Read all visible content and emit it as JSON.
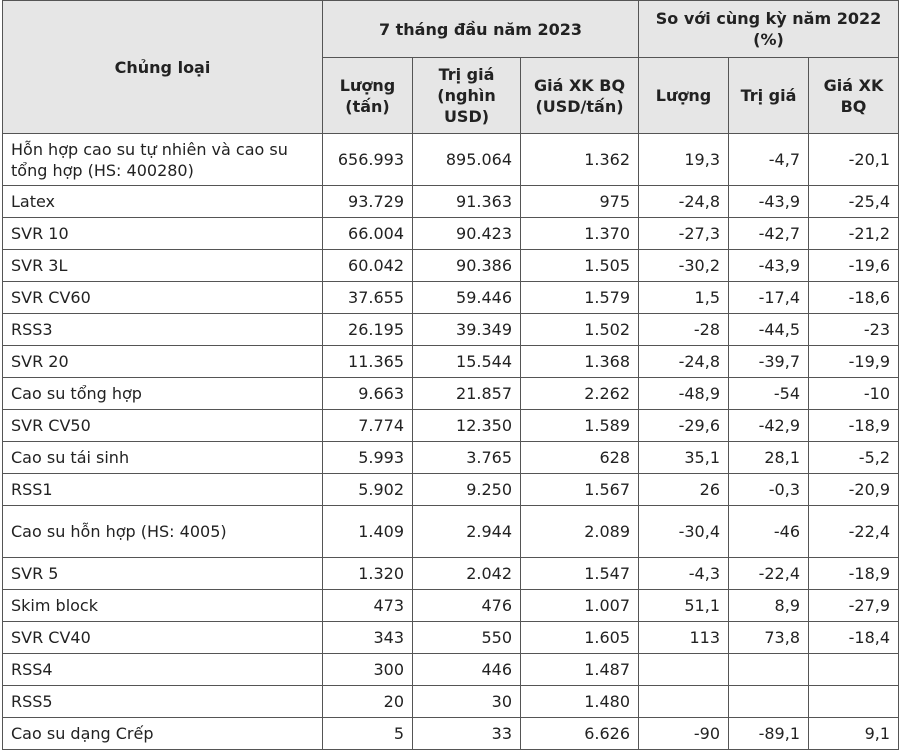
{
  "table": {
    "header": {
      "first": "Chủng loại",
      "group1": "7 tháng đầu năm 2023",
      "group2": "So với cùng kỳ năm 2022 (%)",
      "sub": [
        "Lượng (tấn)",
        "Trị giá (nghìn USD)",
        "Giá XK BQ (USD/tấn)",
        "Lượng",
        "Trị giá",
        "Giá XK BQ"
      ]
    },
    "rows": [
      [
        "Hỗn hợp cao su tự nhiên và cao su tổng hợp (HS: 400280)",
        "656.993",
        "895.064",
        "1.362",
        "19,3",
        "-4,7",
        "-20,1"
      ],
      [
        "Latex",
        "93.729",
        "91.363",
        "975",
        "-24,8",
        "-43,9",
        "-25,4"
      ],
      [
        "SVR 10",
        "66.004",
        "90.423",
        "1.370",
        "-27,3",
        "-42,7",
        "-21,2"
      ],
      [
        "SVR 3L",
        "60.042",
        "90.386",
        "1.505",
        "-30,2",
        "-43,9",
        "-19,6"
      ],
      [
        "SVR CV60",
        "37.655",
        "59.446",
        "1.579",
        "1,5",
        "-17,4",
        "-18,6"
      ],
      [
        "RSS3",
        "26.195",
        "39.349",
        "1.502",
        "-28",
        "-44,5",
        "-23"
      ],
      [
        "SVR 20",
        "11.365",
        "15.544",
        "1.368",
        "-24,8",
        "-39,7",
        "-19,9"
      ],
      [
        "Cao su tổng hợp",
        "9.663",
        "21.857",
        "2.262",
        "-48,9",
        "-54",
        "-10"
      ],
      [
        "SVR CV50",
        "7.774",
        "12.350",
        "1.589",
        "-29,6",
        "-42,9",
        "-18,9"
      ],
      [
        "Cao su tái sinh",
        "5.993",
        "3.765",
        "628",
        "35,1",
        "28,1",
        "-5,2"
      ],
      [
        "RSS1",
        "5.902",
        "9.250",
        "1.567",
        "26",
        "-0,3",
        "-20,9"
      ],
      [
        "Cao su hỗn hợp (HS: 4005)",
        "1.409",
        "2.944",
        "2.089",
        "-30,4",
        "-46",
        "-22,4"
      ],
      [
        "SVR 5",
        "1.320",
        "2.042",
        "1.547",
        "-4,3",
        "-22,4",
        "-18,9"
      ],
      [
        "Skim block",
        "473",
        "476",
        "1.007",
        "51,1",
        "8,9",
        "-27,9"
      ],
      [
        "SVR CV40",
        "343",
        "550",
        "1.605",
        "113",
        "73,8",
        "-18,4"
      ],
      [
        "RSS4",
        "300",
        "446",
        "1.487"
      ],
      [
        "RSS5",
        "20",
        "30",
        "1.480"
      ],
      [
        "Cao su dạng Crếp",
        "5",
        "33",
        "6.626",
        "-90",
        "-89,1",
        "9,1"
      ]
    ]
  }
}
